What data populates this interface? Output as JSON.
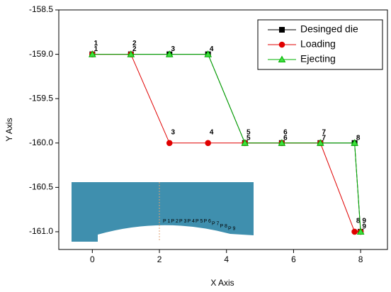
{
  "chart_data": {
    "type": "line",
    "xlabel": "X Axis",
    "ylabel": "Y Axis",
    "xlim": [
      -1,
      8.8
    ],
    "ylim": [
      -161.2,
      -158.5
    ],
    "xticks": [
      0,
      2,
      4,
      6,
      8
    ],
    "yticks": [
      -158.5,
      {
        "value": -159,
        "label": "-159.0"
      },
      -159.5,
      {
        "value": -160,
        "label": "-160.0"
      },
      -160.5,
      {
        "value": -161,
        "label": "-161.0"
      }
    ],
    "legend": "upper right",
    "point_labels": [
      "1",
      "2",
      "3",
      "4",
      "5",
      "6",
      "7",
      "8",
      "9"
    ],
    "series": [
      {
        "name": "Desinged die",
        "color": "#000000",
        "marker": "square",
        "x": [
          0,
          1.15,
          2.3,
          3.45,
          4.55,
          5.65,
          6.8,
          7.82,
          8.0
        ],
        "values": [
          -159,
          -159,
          -159,
          -159,
          -160,
          -160,
          -160,
          -160,
          -161
        ]
      },
      {
        "name": "Loading",
        "color": "#e00000",
        "marker": "circle",
        "x": [
          0,
          1.15,
          2.3,
          3.45,
          4.55,
          5.65,
          6.8,
          7.82,
          8.0
        ],
        "values": [
          -159,
          -159,
          -160,
          -160,
          -160,
          -160,
          -160,
          -161,
          -161
        ]
      },
      {
        "name": "Ejecting",
        "color": "#00b000",
        "marker": "triangle",
        "x": [
          0,
          1.15,
          2.3,
          3.45,
          4.55,
          5.65,
          6.8,
          7.82,
          8.0
        ],
        "values": [
          -159,
          -159,
          -159,
          -159,
          -160,
          -160,
          -160,
          -160,
          -161
        ]
      }
    ],
    "inset_labels": [
      "P 1",
      "P 2",
      "P 3",
      "P 4",
      "P 5",
      "P 6",
      "P 7",
      "P 8",
      "P 9"
    ]
  }
}
